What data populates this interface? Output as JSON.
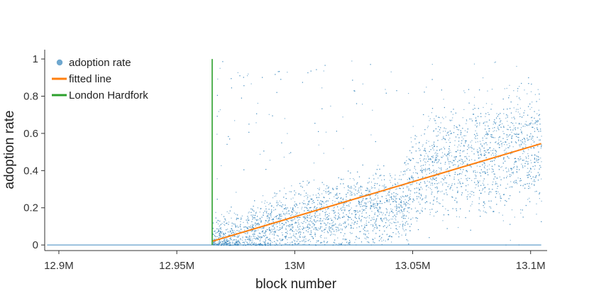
{
  "chart_data": {
    "type": "scatter",
    "xlabel": "block number",
    "ylabel": "adoption rate",
    "xlim": [
      12894000,
      13107000
    ],
    "ylim": [
      -0.03,
      1.05
    ],
    "x_ticks": [
      {
        "value": 12900000,
        "label": "12.9M"
      },
      {
        "value": 12950000,
        "label": "12.95M"
      },
      {
        "value": 13000000,
        "label": "13M"
      },
      {
        "value": 13050000,
        "label": "13.05M"
      },
      {
        "value": 13100000,
        "label": "13.1M"
      }
    ],
    "y_ticks": [
      {
        "value": 0,
        "label": "0"
      },
      {
        "value": 0.2,
        "label": "0.2"
      },
      {
        "value": 0.4,
        "label": "0.4"
      },
      {
        "value": 0.6,
        "label": "0.6"
      },
      {
        "value": 0.8,
        "label": "0.8"
      },
      {
        "value": 1,
        "label": "1"
      }
    ],
    "legend": {
      "placement": "top-left",
      "entries": [
        {
          "label": "adoption rate",
          "marker": "dot",
          "color": "#6fa8cf"
        },
        {
          "label": "fitted line",
          "marker": "line",
          "color": "#ff7f0e"
        },
        {
          "label": "London Hardfork",
          "marker": "line",
          "color": "#2ca02c"
        }
      ]
    },
    "series": [
      {
        "name": "adoption rate",
        "kind": "scatter",
        "color": "#1f77b4",
        "x_range": [
          12895000,
          13104500
        ],
        "points_pre_fork": "all 0",
        "binned_mean": [
          {
            "x": 12965000,
            "y": 0.02
          },
          {
            "x": 12975000,
            "y": 0.05
          },
          {
            "x": 12985000,
            "y": 0.08
          },
          {
            "x": 12995000,
            "y": 0.12
          },
          {
            "x": 13005000,
            "y": 0.14
          },
          {
            "x": 13015000,
            "y": 0.16
          },
          {
            "x": 13025000,
            "y": 0.18
          },
          {
            "x": 13035000,
            "y": 0.2
          },
          {
            "x": 13045000,
            "y": 0.22
          },
          {
            "x": 13055000,
            "y": 0.42
          },
          {
            "x": 13065000,
            "y": 0.45
          },
          {
            "x": 13075000,
            "y": 0.47
          },
          {
            "x": 13085000,
            "y": 0.5
          },
          {
            "x": 13095000,
            "y": 0.53
          },
          {
            "x": 13104000,
            "y": 0.55
          }
        ]
      },
      {
        "name": "fitted line",
        "kind": "line",
        "color": "#ff7f0e",
        "x": [
          12965000,
          13104500
        ],
        "y": [
          0.02,
          0.545
        ]
      },
      {
        "name": "London Hardfork",
        "kind": "vline",
        "color": "#2ca02c",
        "x": 12965000,
        "y": [
          0,
          1
        ]
      }
    ]
  }
}
